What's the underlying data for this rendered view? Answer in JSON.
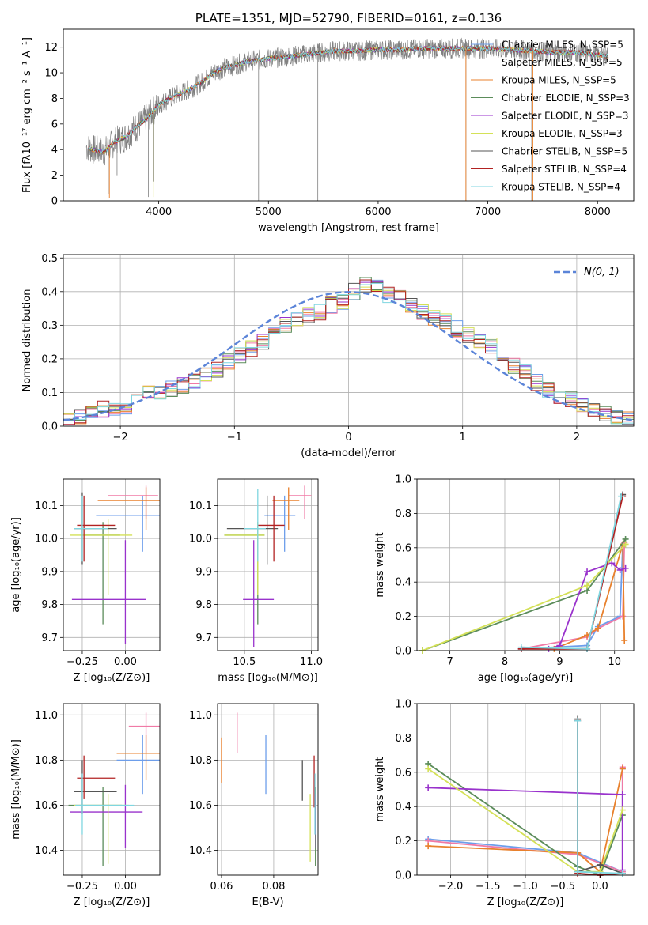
{
  "chart_data": [
    {
      "id": "spectrum",
      "type": "line",
      "title": "PLATE=1351, MJD=52790, FIBERID=0161, z=0.136",
      "xlabel": "wavelength [Angstrom, rest frame]",
      "ylabel": "Flux [fλ10⁻¹⁷ erg cm⁻² s⁻¹ A⁻¹]",
      "xlim": [
        3130,
        8330
      ],
      "ylim": [
        0,
        13.4
      ],
      "xticks": [
        4000,
        5000,
        6000,
        7000,
        8000
      ],
      "yticks": [
        0,
        2,
        4,
        6,
        8,
        10,
        12
      ],
      "grid": false,
      "legend_position": "top-right",
      "data_trace": {
        "color": "#808080",
        "x": [
          3340,
          3400,
          3500,
          3600,
          3700,
          3800,
          3900,
          4000,
          4100,
          4200,
          4300,
          4400,
          4500,
          4600,
          4700,
          4800,
          4900,
          5000,
          5200,
          5400,
          5600,
          5800,
          6000,
          6200,
          6400,
          6600,
          6800,
          7000,
          7200,
          7400,
          7600,
          7800,
          8000,
          8100
        ],
        "y": [
          4.2,
          4.0,
          3.8,
          4.6,
          5.0,
          5.8,
          6.5,
          7.5,
          8.0,
          8.4,
          8.8,
          9.3,
          10.0,
          10.4,
          10.6,
          10.9,
          11.0,
          11.1,
          11.3,
          11.5,
          11.7,
          11.7,
          11.8,
          11.8,
          11.9,
          11.9,
          11.9,
          11.9,
          11.8,
          11.7,
          11.6,
          11.6,
          11.4,
          11.3
        ]
      },
      "series": [
        {
          "name": "Chabrier MILES, N_SSP=5",
          "color": "#6d9eeb"
        },
        {
          "name": "Salpeter MILES, N_SSP=5",
          "color": "#f07aa6"
        },
        {
          "name": "Kroupa MILES, N_SSP=5",
          "color": "#e8812d"
        },
        {
          "name": "Chabrier ELODIE, N_SSP=3",
          "color": "#5b8c5a"
        },
        {
          "name": "Salpeter ELODIE, N_SSP=3",
          "color": "#9932cc"
        },
        {
          "name": "Kroupa ELODIE, N_SSP=3",
          "color": "#d4e157"
        },
        {
          "name": "Chabrier STELIB, N_SSP=5",
          "color": "#555555"
        },
        {
          "name": "Salpeter STELIB, N_SSP=4",
          "color": "#b22222"
        },
        {
          "name": "Kroupa STELIB, N_SSP=4",
          "color": "#7fd6e0"
        }
      ]
    },
    {
      "id": "residuals",
      "type": "line",
      "xlabel": "(data-model)/error",
      "ylabel": "Normed distribution",
      "xlim": [
        -2.5,
        2.5
      ],
      "ylim": [
        0,
        0.51
      ],
      "xticks": [
        -2,
        -1,
        0,
        1,
        2
      ],
      "yticks": [
        0.0,
        0.1,
        0.2,
        0.3,
        0.4,
        0.5
      ],
      "grid": true,
      "legend_position": "top-right",
      "legend_label": "N(0, 1)",
      "normal_curve_color": "#5b84d8",
      "hist_bin_width": 0.1,
      "hist_x_start": -2.5,
      "hist_values": [
        0.02,
        0.03,
        0.04,
        0.05,
        0.05,
        0.06,
        0.08,
        0.1,
        0.1,
        0.11,
        0.12,
        0.13,
        0.15,
        0.17,
        0.19,
        0.21,
        0.23,
        0.25,
        0.28,
        0.3,
        0.32,
        0.33,
        0.34,
        0.36,
        0.37,
        0.4,
        0.42,
        0.41,
        0.39,
        0.38,
        0.36,
        0.34,
        0.32,
        0.31,
        0.29,
        0.27,
        0.25,
        0.24,
        0.21,
        0.18,
        0.16,
        0.13,
        0.11,
        0.09,
        0.08,
        0.06,
        0.05,
        0.04,
        0.03,
        0.02
      ]
    },
    {
      "id": "age-vs-Z",
      "type": "scatter",
      "xlabel": "Z [log₁₀(Z/Z⊙)]",
      "ylabel": "age  [log₁₀(age/yr)]",
      "xlim": [
        -0.36,
        0.2
      ],
      "ylim": [
        9.66,
        10.18
      ],
      "xticks": [
        -0.25,
        0.0
      ],
      "xticklabels": [
        "−0.25",
        "0.00"
      ],
      "yticks": [
        9.7,
        9.8,
        9.9,
        10.0,
        10.1
      ],
      "grid": true,
      "points": [
        {
          "x": 0.1,
          "y": 10.07,
          "xerr": [
            0.27,
            0.1
          ],
          "yerr": [
            0.11,
            0.06
          ],
          "color": "#6d9eeb"
        },
        {
          "x": 0.12,
          "y": 10.13,
          "xerr": [
            0.22,
            0.07
          ],
          "yerr": [
            0.07,
            0.03
          ],
          "color": "#f07aa6"
        },
        {
          "x": 0.12,
          "y": 10.115,
          "xerr": [
            0.28,
            0.08
          ],
          "yerr": [
            0.09,
            0.04
          ],
          "color": "#e8812d"
        },
        {
          "x": -0.13,
          "y": 10.01,
          "xerr": [
            0.11,
            0.1
          ],
          "yerr": [
            0.27,
            0.04
          ],
          "color": "#5b8c5a"
        },
        {
          "x": 0.0,
          "y": 9.815,
          "xerr": [
            0.31,
            0.12
          ],
          "yerr": [
            0.135,
            0.18
          ],
          "color": "#9932cc"
        },
        {
          "x": -0.1,
          "y": 10.01,
          "xerr": [
            0.22,
            0.14
          ],
          "yerr": [
            0.18,
            0.05
          ],
          "color": "#d4e157"
        },
        {
          "x": -0.25,
          "y": 10.03,
          "xerr": [
            0.05,
            0.2
          ],
          "yerr": [
            0.11,
            0.11
          ],
          "color": "#555555"
        },
        {
          "x": -0.24,
          "y": 10.04,
          "xerr": [
            0.04,
            0.18
          ],
          "yerr": [
            0.11,
            0.09
          ],
          "color": "#b22222"
        },
        {
          "x": -0.25,
          "y": 10.03,
          "xerr": [
            0.05,
            0.15
          ],
          "yerr": [
            0.1,
            0.1
          ],
          "color": "#7fd6e0"
        }
      ]
    },
    {
      "id": "age-vs-mass",
      "type": "scatter",
      "xlabel": "mass [log₁₀(M/M⊙)]",
      "xlim": [
        10.3,
        11.05
      ],
      "ylim": [
        9.66,
        10.18
      ],
      "xticks": [
        10.5,
        11.0
      ],
      "xticklabels": [
        "10.5",
        "11.0"
      ],
      "yticks": [
        9.7,
        9.8,
        9.9,
        10.0,
        10.1
      ],
      "grid": true,
      "points": [
        {
          "x": 10.8,
          "y": 10.07,
          "xerr": [
            0.15,
            0.08
          ],
          "yerr": [
            0.11,
            0.06
          ],
          "color": "#6d9eeb"
        },
        {
          "x": 10.95,
          "y": 10.13,
          "xerr": [
            0.12,
            0.05
          ],
          "yerr": [
            0.07,
            0.03
          ],
          "color": "#f07aa6"
        },
        {
          "x": 10.83,
          "y": 10.115,
          "xerr": [
            0.12,
            0.08
          ],
          "yerr": [
            0.09,
            0.04
          ],
          "color": "#e8812d"
        },
        {
          "x": 10.6,
          "y": 10.01,
          "xerr": [
            0.25,
            0.05
          ],
          "yerr": [
            0.27,
            0.04
          ],
          "color": "#5b8c5a"
        },
        {
          "x": 10.57,
          "y": 9.815,
          "xerr": [
            0.08,
            0.15
          ],
          "yerr": [
            0.145,
            0.18
          ],
          "color": "#9932cc"
        },
        {
          "x": 10.6,
          "y": 10.01,
          "xerr": [
            0.25,
            0.05
          ],
          "yerr": [
            0.18,
            0.04
          ],
          "color": "#d4e157"
        },
        {
          "x": 10.67,
          "y": 10.03,
          "xerr": [
            0.3,
            0.08
          ],
          "yerr": [
            0.11,
            0.1
          ],
          "color": "#555555"
        },
        {
          "x": 10.72,
          "y": 10.04,
          "xerr": [
            0.12,
            0.08
          ],
          "yerr": [
            0.11,
            0.09
          ],
          "color": "#b22222"
        },
        {
          "x": 10.6,
          "y": 10.03,
          "xerr": [
            0.1,
            0.06
          ],
          "yerr": [
            0.1,
            0.12
          ],
          "color": "#7fd6e0"
        }
      ]
    },
    {
      "id": "weight-vs-age",
      "type": "line",
      "xlabel": "age  [log₁₀(age/yr)]",
      "ylabel": "mass weight",
      "xlim": [
        6.4,
        10.35
      ],
      "ylim": [
        0,
        1.0
      ],
      "xticks": [
        7,
        8,
        9,
        10
      ],
      "yticks": [
        0.0,
        0.2,
        0.4,
        0.6,
        0.8,
        1.0
      ],
      "grid": true,
      "series": [
        {
          "color": "#6d9eeb",
          "x": [
            8.3,
            9.5,
            9.7,
            10.1,
            10.15
          ],
          "y": [
            0.01,
            0.03,
            0.14,
            0.2,
            0.62
          ]
        },
        {
          "color": "#f07aa6",
          "x": [
            8.3,
            9.5,
            9.7,
            10.15,
            10.18
          ],
          "y": [
            0.01,
            0.08,
            0.13,
            0.2,
            0.63
          ]
        },
        {
          "color": "#e8812d",
          "x": [
            8.9,
            9.5,
            9.7,
            10.15,
            10.18
          ],
          "y": [
            0.01,
            0.09,
            0.13,
            0.62,
            0.06
          ]
        },
        {
          "color": "#5b8c5a",
          "x": [
            6.5,
            9.5,
            10.2
          ],
          "y": [
            0.0,
            0.35,
            0.65
          ]
        },
        {
          "color": "#9932cc",
          "x": [
            8.8,
            9.0,
            9.5,
            9.95,
            10.1,
            10.2
          ],
          "y": [
            0.01,
            0.03,
            0.46,
            0.51,
            0.47,
            0.48
          ]
        },
        {
          "color": "#d4e157",
          "x": [
            6.5,
            9.5,
            10.2
          ],
          "y": [
            0.0,
            0.38,
            0.62
          ]
        },
        {
          "color": "#555555",
          "x": [
            8.3,
            9.5,
            10.15
          ],
          "y": [
            0.01,
            0.01,
            0.91
          ]
        },
        {
          "color": "#b22222",
          "x": [
            8.3,
            9.5,
            10.15
          ],
          "y": [
            0.01,
            0.01,
            0.9
          ]
        },
        {
          "color": "#7fd6e0",
          "x": [
            8.3,
            9.5,
            10.12
          ],
          "y": [
            0.02,
            0.01,
            0.9
          ]
        }
      ]
    },
    {
      "id": "mass-vs-Z",
      "type": "scatter",
      "xlabel": "Z [log₁₀(Z/Z⊙)]",
      "ylabel": "mass [log₁₀(M/M⊙)]",
      "xlim": [
        -0.36,
        0.2
      ],
      "ylim": [
        10.29,
        11.05
      ],
      "xticks": [
        -0.25,
        0.0
      ],
      "xticklabels": [
        "−0.25",
        "0.00"
      ],
      "yticks": [
        10.4,
        10.6,
        10.8,
        11.0
      ],
      "grid": true,
      "points": [
        {
          "x": 0.1,
          "y": 10.8,
          "xerr": [
            0.15,
            0.1
          ],
          "yerr": [
            0.15,
            0.11
          ],
          "color": "#6d9eeb"
        },
        {
          "x": 0.12,
          "y": 10.95,
          "xerr": [
            0.1,
            0.08
          ],
          "yerr": [
            0.12,
            0.06
          ],
          "color": "#f07aa6"
        },
        {
          "x": 0.12,
          "y": 10.83,
          "xerr": [
            0.17,
            0.08
          ],
          "yerr": [
            0.12,
            0.08
          ],
          "color": "#e8812d"
        },
        {
          "x": -0.13,
          "y": 10.6,
          "xerr": [
            0.2,
            0.11
          ],
          "yerr": [
            0.27,
            0.08
          ],
          "color": "#5b8c5a"
        },
        {
          "x": 0.0,
          "y": 10.57,
          "xerr": [
            0.32,
            0.1
          ],
          "yerr": [
            0.16,
            0.12
          ],
          "color": "#9932cc"
        },
        {
          "x": -0.1,
          "y": 10.6,
          "xerr": [
            0.2,
            0.12
          ],
          "yerr": [
            0.26,
            0.05
          ],
          "color": "#d4e157"
        },
        {
          "x": -0.25,
          "y": 10.66,
          "xerr": [
            0.05,
            0.2
          ],
          "yerr": [
            0.1,
            0.14
          ],
          "color": "#555555"
        },
        {
          "x": -0.24,
          "y": 10.72,
          "xerr": [
            0.04,
            0.18
          ],
          "yerr": [
            0.09,
            0.1
          ],
          "color": "#b22222"
        },
        {
          "x": -0.25,
          "y": 10.6,
          "xerr": [
            0.04,
            0.3
          ],
          "yerr": [
            0.13,
            0.14
          ],
          "color": "#7fd6e0"
        }
      ]
    },
    {
      "id": "mass-vs-EBV",
      "type": "scatter",
      "xlabel": "E(B-V)",
      "xlim": [
        0.0585,
        0.097
      ],
      "ylim": [
        10.29,
        11.05
      ],
      "xticks": [
        0.06,
        0.08
      ],
      "xticklabels": [
        "0.06",
        "0.08"
      ],
      "yticks": [
        10.4,
        10.6,
        10.8,
        11.0
      ],
      "grid": true,
      "points": [
        {
          "x": 0.077,
          "y": 10.8,
          "yerr": [
            0.15,
            0.11
          ],
          "color": "#6d9eeb"
        },
        {
          "x": 0.066,
          "y": 10.95,
          "yerr": [
            0.12,
            0.06
          ],
          "color": "#f07aa6"
        },
        {
          "x": 0.06,
          "y": 10.8,
          "yerr": [
            0.1,
            0.1
          ],
          "color": "#e8812d"
        },
        {
          "x": 0.096,
          "y": 10.6,
          "yerr": [
            0.27,
            0.08
          ],
          "color": "#5b8c5a"
        },
        {
          "x": 0.0962,
          "y": 10.55,
          "yerr": [
            0.14,
            0.1
          ],
          "color": "#9932cc"
        },
        {
          "x": 0.094,
          "y": 10.5,
          "yerr": [
            0.15,
            0.15
          ],
          "color": "#d4e157"
        },
        {
          "x": 0.091,
          "y": 10.7,
          "yerr": [
            0.08,
            0.1
          ],
          "color": "#555555"
        },
        {
          "x": 0.0955,
          "y": 10.7,
          "yerr": [
            0.11,
            0.12
          ],
          "color": "#b22222"
        },
        {
          "x": 0.0958,
          "y": 10.6,
          "yerr": [
            0.13,
            0.14
          ],
          "color": "#7fd6e0"
        }
      ]
    },
    {
      "id": "weight-vs-Z",
      "type": "line",
      "xlabel": "Z [log₁₀(Z/Z⊙)]",
      "ylabel": "mass weight",
      "xlim": [
        -2.45,
        0.45
      ],
      "ylim": [
        0,
        1.0
      ],
      "xticks": [
        -2.0,
        -1.5,
        -1.0,
        -0.5,
        0.0
      ],
      "xticklabels": [
        "−2.0",
        "−1.5",
        "−1.0",
        "−0.5",
        "0.0"
      ],
      "yticks": [
        0.0,
        0.2,
        0.4,
        0.6,
        0.8,
        1.0
      ],
      "grid": true,
      "series": [
        {
          "color": "#6d9eeb",
          "x": [
            -2.3,
            -0.3,
            0.3,
            0.3
          ],
          "y": [
            0.21,
            0.13,
            0.02,
            0.62
          ]
        },
        {
          "color": "#f07aa6",
          "x": [
            -2.3,
            -0.3,
            0.3,
            0.3
          ],
          "y": [
            0.2,
            0.12,
            0.02,
            0.63
          ]
        },
        {
          "color": "#e8812d",
          "x": [
            -2.3,
            -0.3,
            0.0,
            0.3
          ],
          "y": [
            0.17,
            0.13,
            0.02,
            0.62
          ]
        },
        {
          "color": "#5b8c5a",
          "x": [
            -2.3,
            -0.3,
            0.0,
            0.3
          ],
          "y": [
            0.65,
            0.05,
            0.0,
            0.35
          ]
        },
        {
          "color": "#9932cc",
          "x": [
            -2.3,
            0.3,
            0.3,
            0.3
          ],
          "y": [
            0.51,
            0.47,
            0.01,
            0.03
          ]
        },
        {
          "color": "#d4e157",
          "x": [
            -2.3,
            -0.3,
            0.0,
            0.3
          ],
          "y": [
            0.62,
            0.02,
            0.02,
            0.38
          ]
        },
        {
          "color": "#555555",
          "x": [
            -0.3,
            -0.3,
            0.0,
            0.3
          ],
          "y": [
            0.91,
            0.02,
            0.06,
            0.01
          ]
        },
        {
          "color": "#b22222",
          "x": [
            -0.3,
            -0.3,
            0.0,
            0.3
          ],
          "y": [
            0.9,
            0.01,
            0.0,
            0.01
          ]
        },
        {
          "color": "#7fd6e0",
          "x": [
            -0.3,
            -0.3,
            0.3
          ],
          "y": [
            0.9,
            0.02,
            0.01
          ]
        }
      ]
    }
  ]
}
